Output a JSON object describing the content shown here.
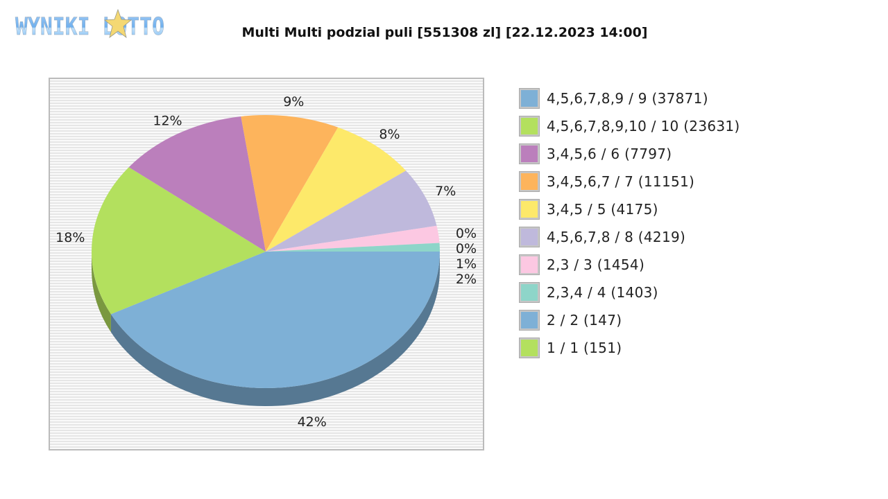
{
  "logo": {
    "text": "WYNIKI LOTTO"
  },
  "chart_data": {
    "type": "pie",
    "title": "Multi Multi podzial puli [551308 zl] [22.12.2023 14:00]",
    "style": "3d",
    "slices": [
      {
        "label": "4,5,6,7,8,9 / 9 (37871)",
        "percent": 42,
        "color": "#7eb0d6"
      },
      {
        "label": "4,5,6,7,8,9,10 / 10 (23631)",
        "percent": 18,
        "color": "#b3e05e"
      },
      {
        "label": "3,4,5,6 / 6 (7797)",
        "percent": 12,
        "color": "#bb7fbc"
      },
      {
        "label": "3,4,5,6,7 / 7 (11151)",
        "percent": 9,
        "color": "#fdb45c"
      },
      {
        "label": "3,4,5 / 5 (4175)",
        "percent": 8,
        "color": "#fde96a"
      },
      {
        "label": "4,5,6,7,8 / 8 (4219)",
        "percent": 7,
        "color": "#bfb9dc"
      },
      {
        "label": "2,3 / 3 (1454)",
        "percent": 2,
        "color": "#fcc8e2"
      },
      {
        "label": "2,3,4 / 4 (1403)",
        "percent": 1,
        "color": "#8ed5c9"
      },
      {
        "label": "2 / 2 (147)",
        "percent": 0,
        "color": "#7eb0d6"
      },
      {
        "label": "1 / 1 (151)",
        "percent": 0,
        "color": "#b3e05e"
      }
    ],
    "legend": "right"
  }
}
